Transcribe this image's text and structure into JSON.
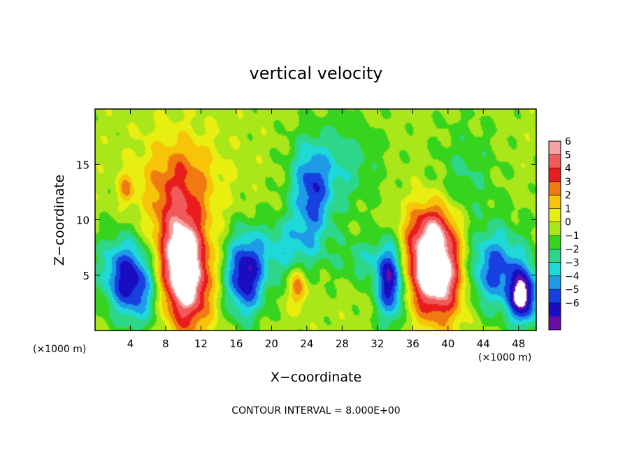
{
  "chart_data": {
    "type": "heatmap",
    "title": "vertical velocity",
    "xlabel": "X−coordinate",
    "ylabel": "Z−coordinate",
    "x_unit_left": "(×1000 m)",
    "x_unit_right": "(×1000 m)",
    "footer": "CONTOUR INTERVAL = 8.000E+00",
    "xlim": [
      0,
      50
    ],
    "ylim": [
      0,
      20
    ],
    "x_ticks": [
      4,
      8,
      12,
      16,
      20,
      24,
      28,
      32,
      36,
      40,
      44,
      48
    ],
    "y_ticks": [
      5,
      10,
      15
    ],
    "x_tick_labels": [
      "4",
      "8",
      "12",
      "16",
      "20",
      "24",
      "28",
      "32",
      "36",
      "40",
      "44",
      "48"
    ],
    "y_tick_labels": [
      "5",
      "10",
      "15"
    ],
    "colorbar": {
      "levels": [
        6,
        5,
        4,
        3,
        2,
        1,
        0,
        -1,
        -2,
        -3,
        -4,
        -5,
        -6
      ],
      "labels": [
        "6",
        "5",
        "4",
        "3",
        "2",
        "1",
        "0",
        "−1",
        "−2",
        "−3",
        "−4",
        "−5",
        "−6"
      ],
      "colors": [
        "#f7a1a1",
        "#f05a5a",
        "#e81c1c",
        "#f07a12",
        "#f7c40a",
        "#e8ee10",
        "#a9e61a",
        "#36d41e",
        "#2ed68a",
        "#1fd8d8",
        "#1e9ae8",
        "#1840e0",
        "#1a0cc0",
        "#6a0ca8"
      ]
    },
    "background_value": 0.5,
    "features": [
      {
        "x": 4.0,
        "z": 4.5,
        "value": -6.5,
        "sx": 2.2,
        "sz": 2.6,
        "tilt": 0.6
      },
      {
        "x": 10.0,
        "z": 5.5,
        "value": 9.0,
        "sx": 2.0,
        "sz": 3.6,
        "tilt": 0.2
      },
      {
        "x": 9.5,
        "z": 13.5,
        "value": 3.2,
        "sx": 3.0,
        "sz": 3.0,
        "tilt": 0.0
      },
      {
        "x": 3.5,
        "z": 12.8,
        "value": 2.5,
        "sx": 0.6,
        "sz": 1.0,
        "tilt": 0.0
      },
      {
        "x": 17.0,
        "z": 5.0,
        "value": -6.5,
        "sx": 1.6,
        "sz": 2.6,
        "tilt": 0.0
      },
      {
        "x": 23.0,
        "z": 4.0,
        "value": 3.5,
        "sx": 0.7,
        "sz": 1.3,
        "tilt": 0.0
      },
      {
        "x": 22.0,
        "z": 7.5,
        "value": -3.0,
        "sx": 2.5,
        "sz": 2.0,
        "tilt": 0.0
      },
      {
        "x": 24.5,
        "z": 12.5,
        "value": -4.5,
        "sx": 1.6,
        "sz": 3.0,
        "tilt": 0.2
      },
      {
        "x": 28.0,
        "z": 15.0,
        "value": -2.2,
        "sx": 3.0,
        "sz": 3.0,
        "tilt": 0.0
      },
      {
        "x": 30.0,
        "z": 6.5,
        "value": -2.0,
        "sx": 2.0,
        "sz": 1.5,
        "tilt": 0.0
      },
      {
        "x": 33.5,
        "z": 4.5,
        "value": -7.0,
        "sx": 1.2,
        "sz": 2.5,
        "tilt": 0.0
      },
      {
        "x": 38.5,
        "z": 5.5,
        "value": 9.0,
        "sx": 2.4,
        "sz": 3.0,
        "tilt": 0.4
      },
      {
        "x": 38.5,
        "z": 9.5,
        "value": 2.5,
        "sx": 1.8,
        "sz": 1.8,
        "tilt": 0.0
      },
      {
        "x": 45.0,
        "z": 5.5,
        "value": -5.0,
        "sx": 2.6,
        "sz": 2.6,
        "tilt": -0.4
      },
      {
        "x": 48.5,
        "z": 3.0,
        "value": -7.0,
        "sx": 1.2,
        "sz": 1.8,
        "tilt": 0.0
      },
      {
        "x": 42.0,
        "z": 14.0,
        "value": -1.6,
        "sx": 2.5,
        "sz": 3.5,
        "tilt": 0.0
      }
    ]
  }
}
